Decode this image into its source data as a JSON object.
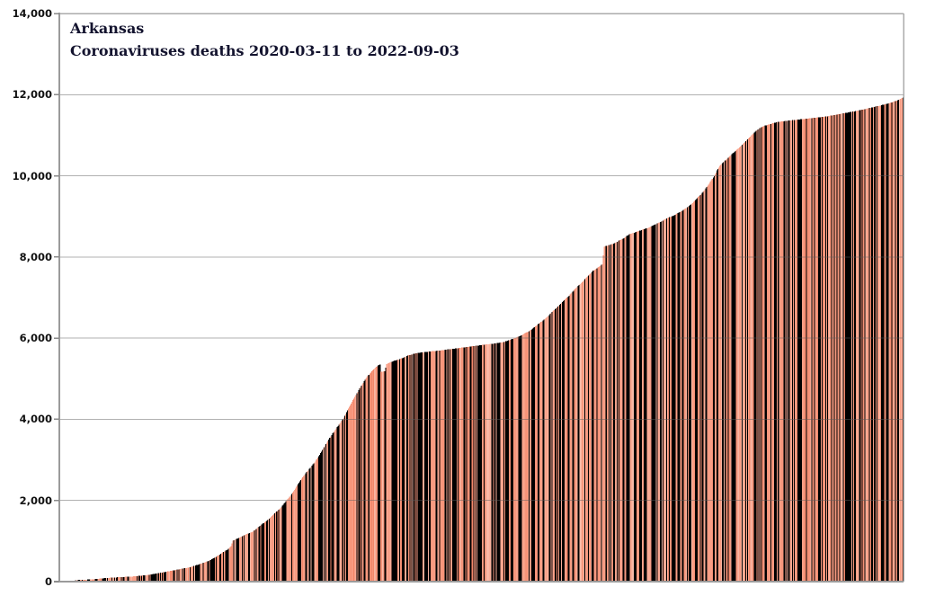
{
  "colors": {
    "background": "#ffffff",
    "title_text": "#13132e",
    "axis_label_text": "#121212",
    "axis_line": "#9b9b9b",
    "plot_border": "#ababab",
    "gridline_rgba": "rgba(92,92,92,0.48)",
    "tick_mark": "#8a8a8a",
    "bar_base": "#f79c82",
    "bar_palette": [
      "#f89d84",
      "#f79a80",
      "#faa58d",
      "#f59176",
      "#fbaf9a",
      "#f89d84",
      "#f3886b",
      "#faa993",
      "#f9b5a2",
      "#f6957a",
      "#f89f86",
      "#f28a6e",
      "#fbbca9",
      "#f69278"
    ]
  },
  "chart_data": {
    "type": "bar",
    "title": "Arkansas",
    "subtitle": "Coronaviruses deaths 2020-03-11 to 2022-09-03",
    "region": "Arkansas",
    "metric": "Cumulative coronavirus deaths",
    "date_start": "2020-03-11",
    "date_end": "2022-09-03",
    "n_days": 907,
    "ylim": [
      0,
      14000
    ],
    "y_ticks": [
      0,
      2000,
      4000,
      6000,
      8000,
      10000,
      12000,
      14000
    ],
    "y_tick_labels": [
      "0",
      "2,000",
      "4,000",
      "6,000",
      "8,000",
      "10,000",
      "12,000",
      "14,000"
    ],
    "xlabel": "",
    "ylabel": "",
    "grid": "horizontal",
    "legend": "none",
    "bar_width_days": 1,
    "final_value_approx": 11930,
    "notable_features": [
      "step up to ~1,010 around day 186 (Sep 2020)",
      "brief downward notch from ~5,355 to ~5,170 around day 345 (Feb-Mar 2021)",
      "plateau near 5,700-5,900 days 360-480 (spring-summer 2021)",
      "vertical step ~7,820 to ~8,255 at day 585 (Oct 2021 data revision)",
      "small step near 10,150 around day 706 (Feb 2022)",
      "flattens near 11,300-11,930 after day 760"
    ],
    "series": [
      {
        "name": "Cumulative deaths",
        "interpolation": "linear",
        "points": [
          [
            0,
            0
          ],
          [
            10,
            5
          ],
          [
            20,
            40
          ],
          [
            35,
            55
          ],
          [
            50,
            90
          ],
          [
            65,
            110
          ],
          [
            80,
            130
          ],
          [
            95,
            165
          ],
          [
            110,
            225
          ],
          [
            125,
            290
          ],
          [
            140,
            355
          ],
          [
            150,
            430
          ],
          [
            160,
            510
          ],
          [
            170,
            640
          ],
          [
            180,
            790
          ],
          [
            184,
            880
          ],
          [
            186,
            1010
          ],
          [
            195,
            1110
          ],
          [
            207,
            1230
          ],
          [
            216,
            1390
          ],
          [
            226,
            1570
          ],
          [
            236,
            1790
          ],
          [
            246,
            2060
          ],
          [
            256,
            2400
          ],
          [
            265,
            2700
          ],
          [
            274,
            2940
          ],
          [
            283,
            3280
          ],
          [
            293,
            3650
          ],
          [
            303,
            3960
          ],
          [
            313,
            4390
          ],
          [
            322,
            4760
          ],
          [
            330,
            5040
          ],
          [
            336,
            5210
          ],
          [
            342,
            5330
          ],
          [
            344,
            5355
          ],
          [
            345,
            5170
          ],
          [
            349,
            5185
          ],
          [
            351,
            5365
          ],
          [
            358,
            5430
          ],
          [
            366,
            5490
          ],
          [
            374,
            5570
          ],
          [
            382,
            5625
          ],
          [
            395,
            5665
          ],
          [
            410,
            5700
          ],
          [
            425,
            5745
          ],
          [
            440,
            5790
          ],
          [
            455,
            5835
          ],
          [
            468,
            5870
          ],
          [
            477,
            5905
          ],
          [
            487,
            5985
          ],
          [
            496,
            6070
          ],
          [
            506,
            6200
          ],
          [
            515,
            6360
          ],
          [
            525,
            6550
          ],
          [
            535,
            6780
          ],
          [
            545,
            7000
          ],
          [
            554,
            7220
          ],
          [
            564,
            7450
          ],
          [
            573,
            7660
          ],
          [
            583,
            7820
          ],
          [
            585,
            8255
          ],
          [
            595,
            8330
          ],
          [
            605,
            8450
          ],
          [
            612,
            8560
          ],
          [
            622,
            8640
          ],
          [
            631,
            8710
          ],
          [
            641,
            8810
          ],
          [
            650,
            8925
          ],
          [
            660,
            9030
          ],
          [
            670,
            9155
          ],
          [
            680,
            9330
          ],
          [
            689,
            9550
          ],
          [
            696,
            9750
          ],
          [
            703,
            9990
          ],
          [
            706,
            10130
          ],
          [
            709,
            10240
          ],
          [
            718,
            10440
          ],
          [
            728,
            10660
          ],
          [
            737,
            10850
          ],
          [
            747,
            11090
          ],
          [
            753,
            11190
          ],
          [
            758,
            11240
          ],
          [
            764,
            11280
          ],
          [
            772,
            11330
          ],
          [
            785,
            11365
          ],
          [
            795,
            11390
          ],
          [
            805,
            11415
          ],
          [
            815,
            11440
          ],
          [
            824,
            11465
          ],
          [
            834,
            11505
          ],
          [
            843,
            11545
          ],
          [
            853,
            11585
          ],
          [
            863,
            11635
          ],
          [
            872,
            11680
          ],
          [
            882,
            11735
          ],
          [
            892,
            11795
          ],
          [
            901,
            11870
          ],
          [
            906,
            11930
          ]
        ]
      }
    ]
  }
}
